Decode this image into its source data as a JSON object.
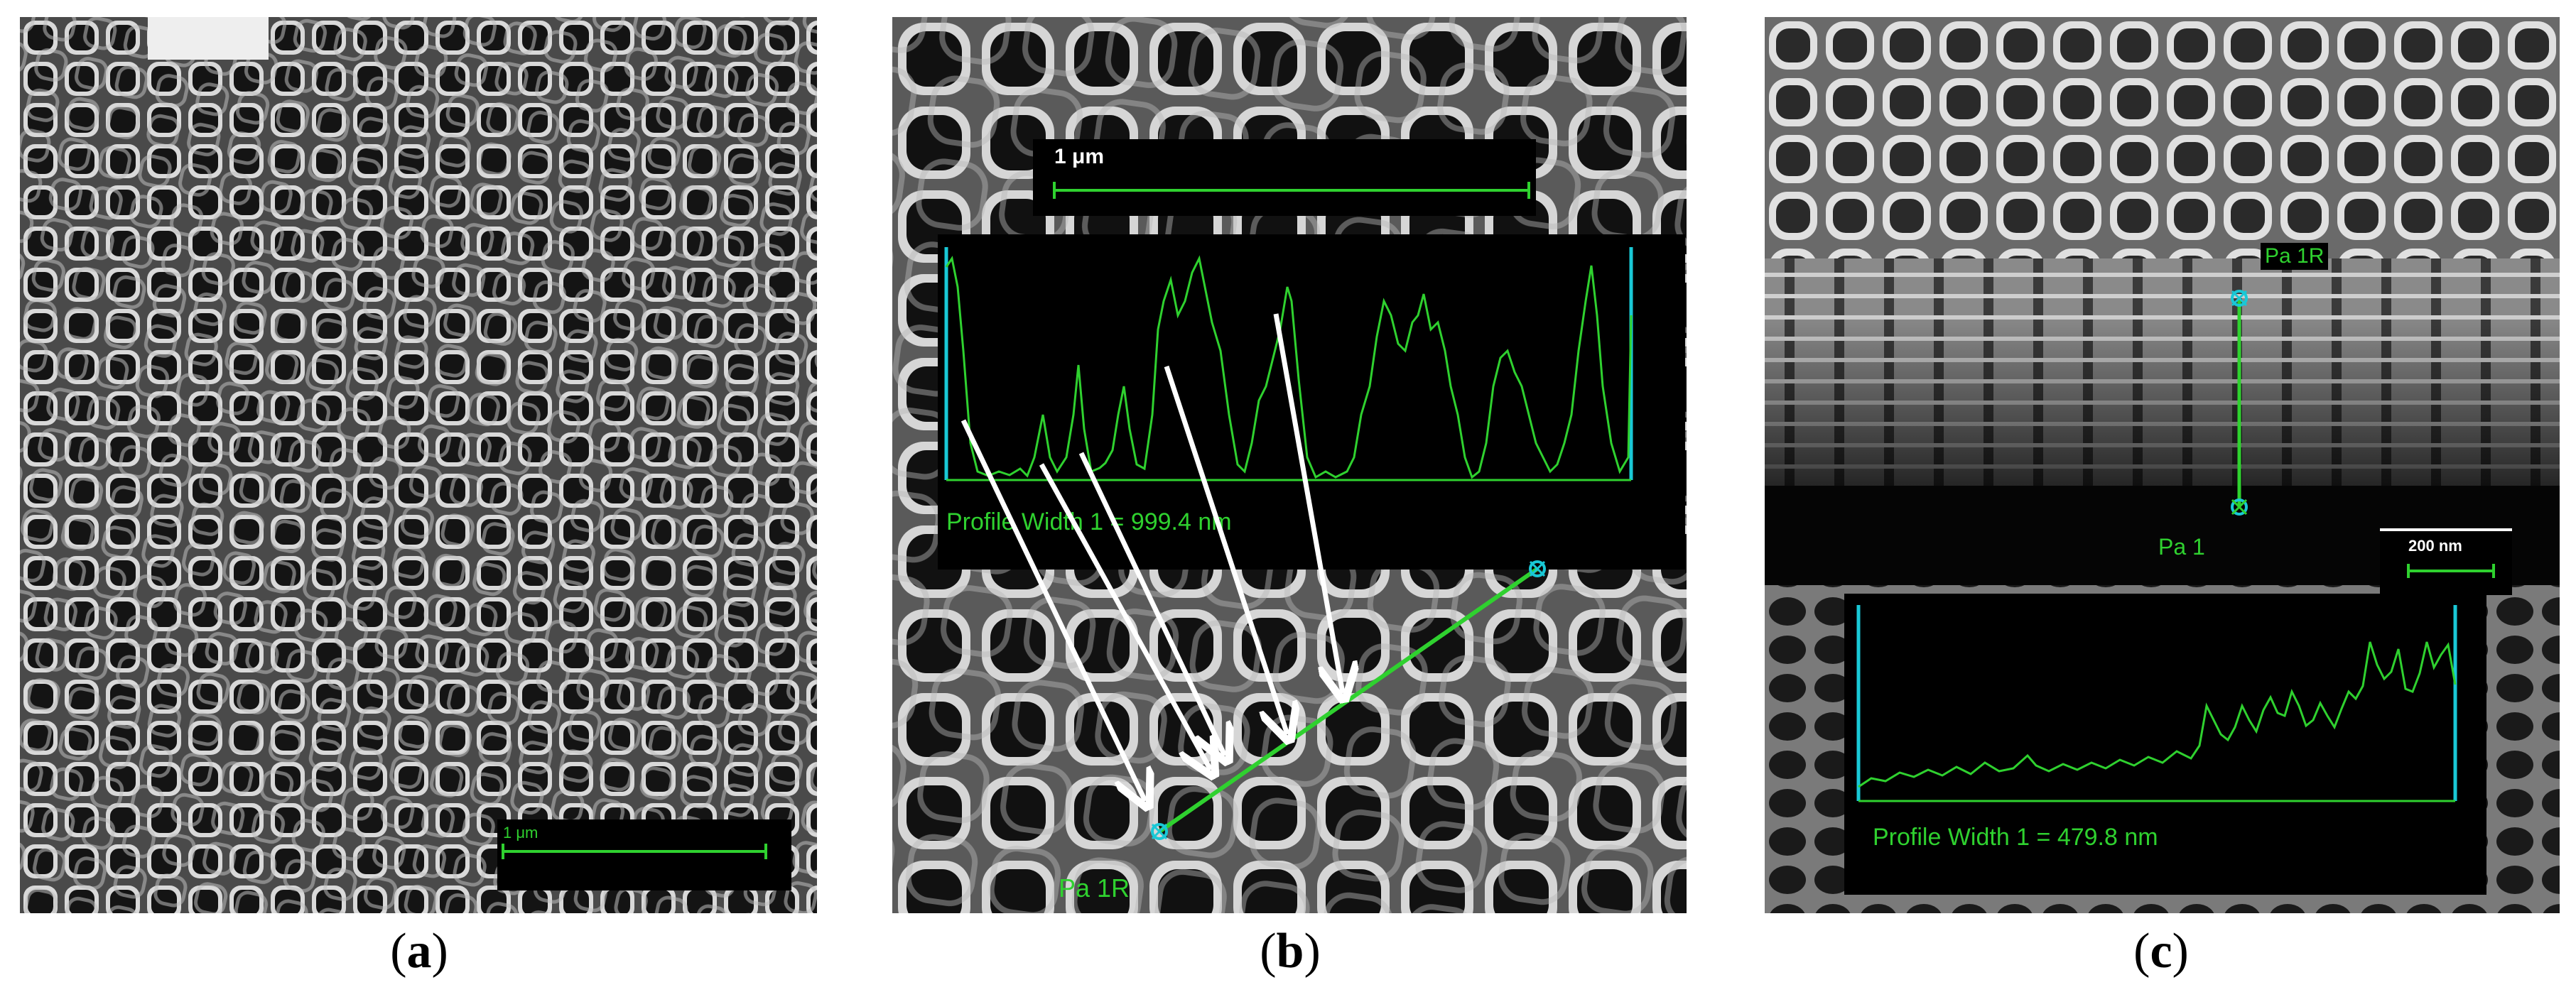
{
  "panels": {
    "a": {
      "caption_open": "(",
      "caption_letter": "a",
      "caption_close": ")",
      "scale_label": "1 μm"
    },
    "b": {
      "caption_open": "(",
      "caption_letter": "b",
      "caption_close": ")",
      "scale_label": "1 μm",
      "profile_label": "Profile Width 1 = 999.4 nm",
      "marker_label": "Pa 1R"
    },
    "c": {
      "caption_open": "(",
      "caption_letter": "c",
      "caption_close": ")",
      "marker_top_label": "Pa 1R",
      "marker_bottom_label": "Pa 1",
      "scale_label": "200 nm",
      "profile_label": "Profile Width 1 = 479.8 nm"
    }
  },
  "colors": {
    "profile_green": "#2fd12f",
    "profile_axis_cyan": "#19c8d6",
    "arrow_white": "#ffffff",
    "scale_line_green": "#2fd12f"
  }
}
